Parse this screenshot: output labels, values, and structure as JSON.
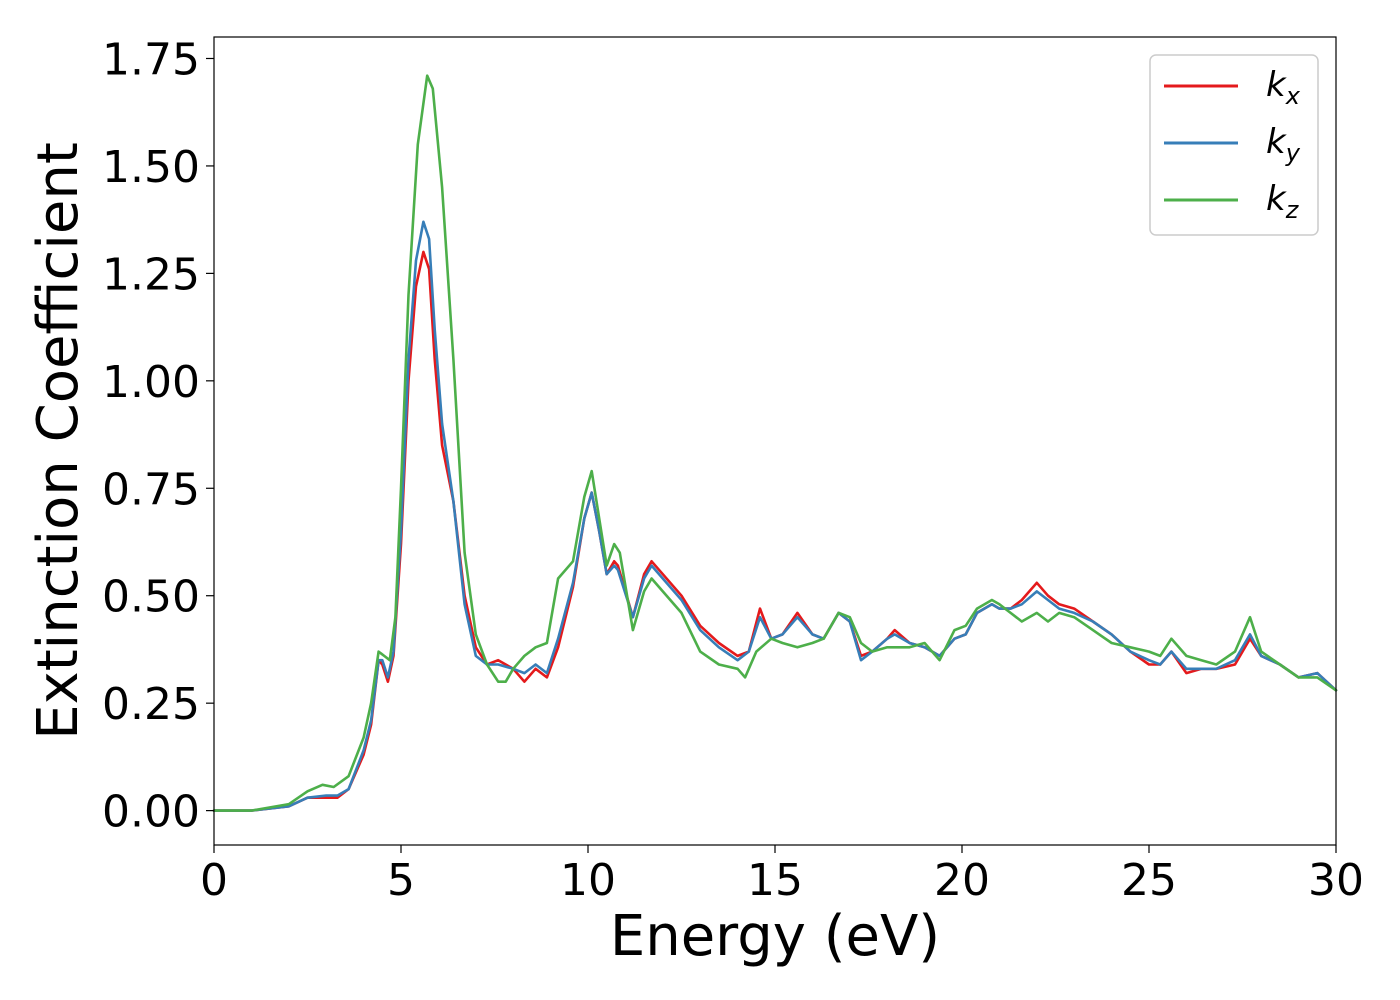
{
  "chart_data": {
    "type": "line",
    "xlabel": "Energy (eV)",
    "ylabel": "Extinction Coefficient",
    "xlim": [
      0,
      30
    ],
    "ylim": [
      -0.08,
      1.8
    ],
    "xticks": [
      0,
      5,
      10,
      15,
      20,
      25,
      30
    ],
    "xtick_labels": [
      "0",
      "5",
      "10",
      "15",
      "20",
      "25",
      "30"
    ],
    "yticks": [
      0.0,
      0.25,
      0.5,
      0.75,
      1.0,
      1.25,
      1.5,
      1.75
    ],
    "ytick_labels": [
      "0.00",
      "0.25",
      "0.50",
      "0.75",
      "1.00",
      "1.25",
      "1.50",
      "1.75"
    ],
    "legend_position": "top-right",
    "grid": false,
    "series": [
      {
        "name": "k",
        "sub": "x",
        "color": "#e41a1c",
        "points": [
          [
            0,
            0.0
          ],
          [
            1,
            0.0
          ],
          [
            2,
            0.01
          ],
          [
            2.5,
            0.03
          ],
          [
            3,
            0.03
          ],
          [
            3.3,
            0.03
          ],
          [
            3.6,
            0.05
          ],
          [
            4,
            0.13
          ],
          [
            4.2,
            0.2
          ],
          [
            4.4,
            0.35
          ],
          [
            4.5,
            0.34
          ],
          [
            4.65,
            0.3
          ],
          [
            4.8,
            0.36
          ],
          [
            5,
            0.62
          ],
          [
            5.2,
            1.0
          ],
          [
            5.4,
            1.22
          ],
          [
            5.6,
            1.3
          ],
          [
            5.75,
            1.26
          ],
          [
            5.9,
            1.05
          ],
          [
            6.1,
            0.85
          ],
          [
            6.4,
            0.72
          ],
          [
            6.7,
            0.5
          ],
          [
            7,
            0.38
          ],
          [
            7.3,
            0.34
          ],
          [
            7.6,
            0.35
          ],
          [
            8,
            0.33
          ],
          [
            8.3,
            0.3
          ],
          [
            8.6,
            0.33
          ],
          [
            8.9,
            0.31
          ],
          [
            9.2,
            0.38
          ],
          [
            9.6,
            0.52
          ],
          [
            9.9,
            0.68
          ],
          [
            10.1,
            0.74
          ],
          [
            10.3,
            0.65
          ],
          [
            10.5,
            0.55
          ],
          [
            10.7,
            0.58
          ],
          [
            10.8,
            0.57
          ],
          [
            11.2,
            0.45
          ],
          [
            11.5,
            0.55
          ],
          [
            11.7,
            0.58
          ],
          [
            12,
            0.55
          ],
          [
            12.5,
            0.5
          ],
          [
            13,
            0.43
          ],
          [
            13.5,
            0.39
          ],
          [
            14,
            0.36
          ],
          [
            14.3,
            0.37
          ],
          [
            14.6,
            0.47
          ],
          [
            14.9,
            0.4
          ],
          [
            15.2,
            0.41
          ],
          [
            15.6,
            0.46
          ],
          [
            16,
            0.41
          ],
          [
            16.3,
            0.4
          ],
          [
            16.7,
            0.46
          ],
          [
            17,
            0.44
          ],
          [
            17.3,
            0.36
          ],
          [
            17.6,
            0.37
          ],
          [
            18,
            0.4
          ],
          [
            18.2,
            0.42
          ],
          [
            18.6,
            0.39
          ],
          [
            19,
            0.38
          ],
          [
            19.4,
            0.36
          ],
          [
            19.8,
            0.4
          ],
          [
            20.1,
            0.41
          ],
          [
            20.4,
            0.46
          ],
          [
            20.8,
            0.48
          ],
          [
            21,
            0.47
          ],
          [
            21.3,
            0.47
          ],
          [
            21.6,
            0.49
          ],
          [
            22,
            0.53
          ],
          [
            22.3,
            0.5
          ],
          [
            22.6,
            0.48
          ],
          [
            23,
            0.47
          ],
          [
            23.5,
            0.44
          ],
          [
            24,
            0.41
          ],
          [
            24.5,
            0.37
          ],
          [
            25,
            0.34
          ],
          [
            25.3,
            0.34
          ],
          [
            25.6,
            0.37
          ],
          [
            26,
            0.32
          ],
          [
            26.4,
            0.33
          ],
          [
            26.8,
            0.33
          ],
          [
            27.3,
            0.34
          ],
          [
            27.7,
            0.4
          ],
          [
            28,
            0.36
          ],
          [
            28.5,
            0.34
          ],
          [
            29,
            0.31
          ],
          [
            29.5,
            0.32
          ],
          [
            30,
            0.28
          ]
        ]
      },
      {
        "name": "k",
        "sub": "y",
        "color": "#377eb8",
        "points": [
          [
            0,
            0.0
          ],
          [
            1,
            0.0
          ],
          [
            2,
            0.01
          ],
          [
            2.5,
            0.03
          ],
          [
            3,
            0.035
          ],
          [
            3.3,
            0.035
          ],
          [
            3.6,
            0.05
          ],
          [
            4,
            0.14
          ],
          [
            4.2,
            0.21
          ],
          [
            4.4,
            0.35
          ],
          [
            4.5,
            0.35
          ],
          [
            4.65,
            0.31
          ],
          [
            4.8,
            0.37
          ],
          [
            5,
            0.65
          ],
          [
            5.2,
            1.05
          ],
          [
            5.4,
            1.28
          ],
          [
            5.6,
            1.37
          ],
          [
            5.75,
            1.33
          ],
          [
            5.9,
            1.12
          ],
          [
            6.1,
            0.9
          ],
          [
            6.4,
            0.72
          ],
          [
            6.7,
            0.48
          ],
          [
            7,
            0.36
          ],
          [
            7.3,
            0.34
          ],
          [
            7.6,
            0.34
          ],
          [
            8,
            0.33
          ],
          [
            8.3,
            0.32
          ],
          [
            8.6,
            0.34
          ],
          [
            8.9,
            0.32
          ],
          [
            9.2,
            0.4
          ],
          [
            9.6,
            0.53
          ],
          [
            9.9,
            0.68
          ],
          [
            10.1,
            0.74
          ],
          [
            10.3,
            0.65
          ],
          [
            10.5,
            0.55
          ],
          [
            10.7,
            0.57
          ],
          [
            10.8,
            0.56
          ],
          [
            11.2,
            0.45
          ],
          [
            11.5,
            0.54
          ],
          [
            11.7,
            0.57
          ],
          [
            12,
            0.54
          ],
          [
            12.5,
            0.49
          ],
          [
            13,
            0.42
          ],
          [
            13.5,
            0.38
          ],
          [
            14,
            0.35
          ],
          [
            14.3,
            0.37
          ],
          [
            14.6,
            0.45
          ],
          [
            14.9,
            0.4
          ],
          [
            15.2,
            0.41
          ],
          [
            15.6,
            0.45
          ],
          [
            16,
            0.41
          ],
          [
            16.3,
            0.4
          ],
          [
            16.7,
            0.46
          ],
          [
            17,
            0.44
          ],
          [
            17.3,
            0.35
          ],
          [
            17.6,
            0.37
          ],
          [
            18,
            0.4
          ],
          [
            18.2,
            0.41
          ],
          [
            18.6,
            0.39
          ],
          [
            19,
            0.38
          ],
          [
            19.4,
            0.36
          ],
          [
            19.8,
            0.4
          ],
          [
            20.1,
            0.41
          ],
          [
            20.4,
            0.46
          ],
          [
            20.8,
            0.48
          ],
          [
            21,
            0.47
          ],
          [
            21.3,
            0.47
          ],
          [
            21.6,
            0.48
          ],
          [
            22,
            0.51
          ],
          [
            22.3,
            0.49
          ],
          [
            22.6,
            0.47
          ],
          [
            23,
            0.46
          ],
          [
            23.5,
            0.44
          ],
          [
            24,
            0.41
          ],
          [
            24.5,
            0.37
          ],
          [
            25,
            0.35
          ],
          [
            25.3,
            0.34
          ],
          [
            25.6,
            0.37
          ],
          [
            26,
            0.33
          ],
          [
            26.4,
            0.33
          ],
          [
            26.8,
            0.33
          ],
          [
            27.3,
            0.35
          ],
          [
            27.7,
            0.41
          ],
          [
            28,
            0.36
          ],
          [
            28.5,
            0.34
          ],
          [
            29,
            0.31
          ],
          [
            29.5,
            0.32
          ],
          [
            30,
            0.28
          ]
        ]
      },
      {
        "name": "k",
        "sub": "z",
        "color": "#4daf4a",
        "points": [
          [
            0,
            0.0
          ],
          [
            1,
            0.0
          ],
          [
            2,
            0.015
          ],
          [
            2.5,
            0.045
          ],
          [
            2.9,
            0.06
          ],
          [
            3.2,
            0.055
          ],
          [
            3.6,
            0.08
          ],
          [
            4,
            0.17
          ],
          [
            4.2,
            0.25
          ],
          [
            4.4,
            0.37
          ],
          [
            4.55,
            0.36
          ],
          [
            4.7,
            0.35
          ],
          [
            4.85,
            0.45
          ],
          [
            5,
            0.75
          ],
          [
            5.2,
            1.2
          ],
          [
            5.45,
            1.55
          ],
          [
            5.7,
            1.71
          ],
          [
            5.85,
            1.68
          ],
          [
            6.1,
            1.45
          ],
          [
            6.4,
            1.05
          ],
          [
            6.7,
            0.6
          ],
          [
            7,
            0.41
          ],
          [
            7.3,
            0.34
          ],
          [
            7.6,
            0.3
          ],
          [
            7.8,
            0.3
          ],
          [
            8,
            0.33
          ],
          [
            8.3,
            0.36
          ],
          [
            8.6,
            0.38
          ],
          [
            8.9,
            0.39
          ],
          [
            9.2,
            0.54
          ],
          [
            9.6,
            0.58
          ],
          [
            9.9,
            0.73
          ],
          [
            10.1,
            0.79
          ],
          [
            10.3,
            0.68
          ],
          [
            10.5,
            0.57
          ],
          [
            10.7,
            0.62
          ],
          [
            10.85,
            0.6
          ],
          [
            11.2,
            0.42
          ],
          [
            11.5,
            0.51
          ],
          [
            11.7,
            0.54
          ],
          [
            12,
            0.51
          ],
          [
            12.5,
            0.46
          ],
          [
            13,
            0.37
          ],
          [
            13.5,
            0.34
          ],
          [
            14,
            0.33
          ],
          [
            14.2,
            0.31
          ],
          [
            14.5,
            0.37
          ],
          [
            14.9,
            0.4
          ],
          [
            15.2,
            0.39
          ],
          [
            15.6,
            0.38
          ],
          [
            16,
            0.39
          ],
          [
            16.3,
            0.4
          ],
          [
            16.7,
            0.46
          ],
          [
            17,
            0.45
          ],
          [
            17.3,
            0.39
          ],
          [
            17.6,
            0.37
          ],
          [
            18,
            0.38
          ],
          [
            18.2,
            0.38
          ],
          [
            18.6,
            0.38
          ],
          [
            19,
            0.39
          ],
          [
            19.4,
            0.35
          ],
          [
            19.8,
            0.42
          ],
          [
            20.1,
            0.43
          ],
          [
            20.4,
            0.47
          ],
          [
            20.8,
            0.49
          ],
          [
            21,
            0.48
          ],
          [
            21.3,
            0.46
          ],
          [
            21.6,
            0.44
          ],
          [
            22,
            0.46
          ],
          [
            22.3,
            0.44
          ],
          [
            22.6,
            0.46
          ],
          [
            23,
            0.45
          ],
          [
            23.5,
            0.42
          ],
          [
            24,
            0.39
          ],
          [
            24.5,
            0.38
          ],
          [
            25,
            0.37
          ],
          [
            25.3,
            0.36
          ],
          [
            25.6,
            0.4
          ],
          [
            26,
            0.36
          ],
          [
            26.4,
            0.35
          ],
          [
            26.8,
            0.34
          ],
          [
            27.3,
            0.37
          ],
          [
            27.7,
            0.45
          ],
          [
            28,
            0.37
          ],
          [
            28.5,
            0.34
          ],
          [
            29,
            0.31
          ],
          [
            29.5,
            0.31
          ],
          [
            30,
            0.28
          ]
        ]
      }
    ]
  }
}
